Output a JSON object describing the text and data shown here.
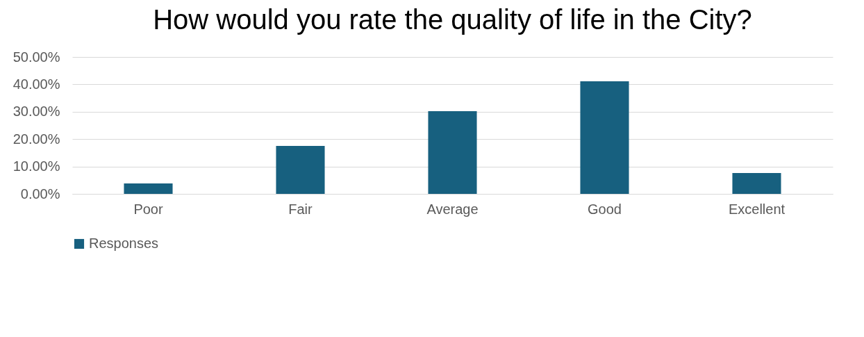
{
  "chart_data": {
    "type": "bar",
    "title": "How would you rate the quality of life in the City?",
    "categories": [
      "Poor",
      "Fair",
      "Average",
      "Good",
      "Excellent"
    ],
    "series": [
      {
        "name": "Responses",
        "color": "#17607f",
        "values": [
          3.8,
          17.5,
          30.2,
          41.1,
          7.6
        ]
      }
    ],
    "ylim": [
      0,
      50
    ],
    "yticks": [
      {
        "value": 0,
        "label": "0.00%"
      },
      {
        "value": 10,
        "label": "10.00%"
      },
      {
        "value": 20,
        "label": "20.00%"
      },
      {
        "value": 30,
        "label": "30.00%"
      },
      {
        "value": 40,
        "label": "40.00%"
      },
      {
        "value": 50,
        "label": "50.00%"
      }
    ],
    "grid": "y",
    "legend": "bottom"
  }
}
